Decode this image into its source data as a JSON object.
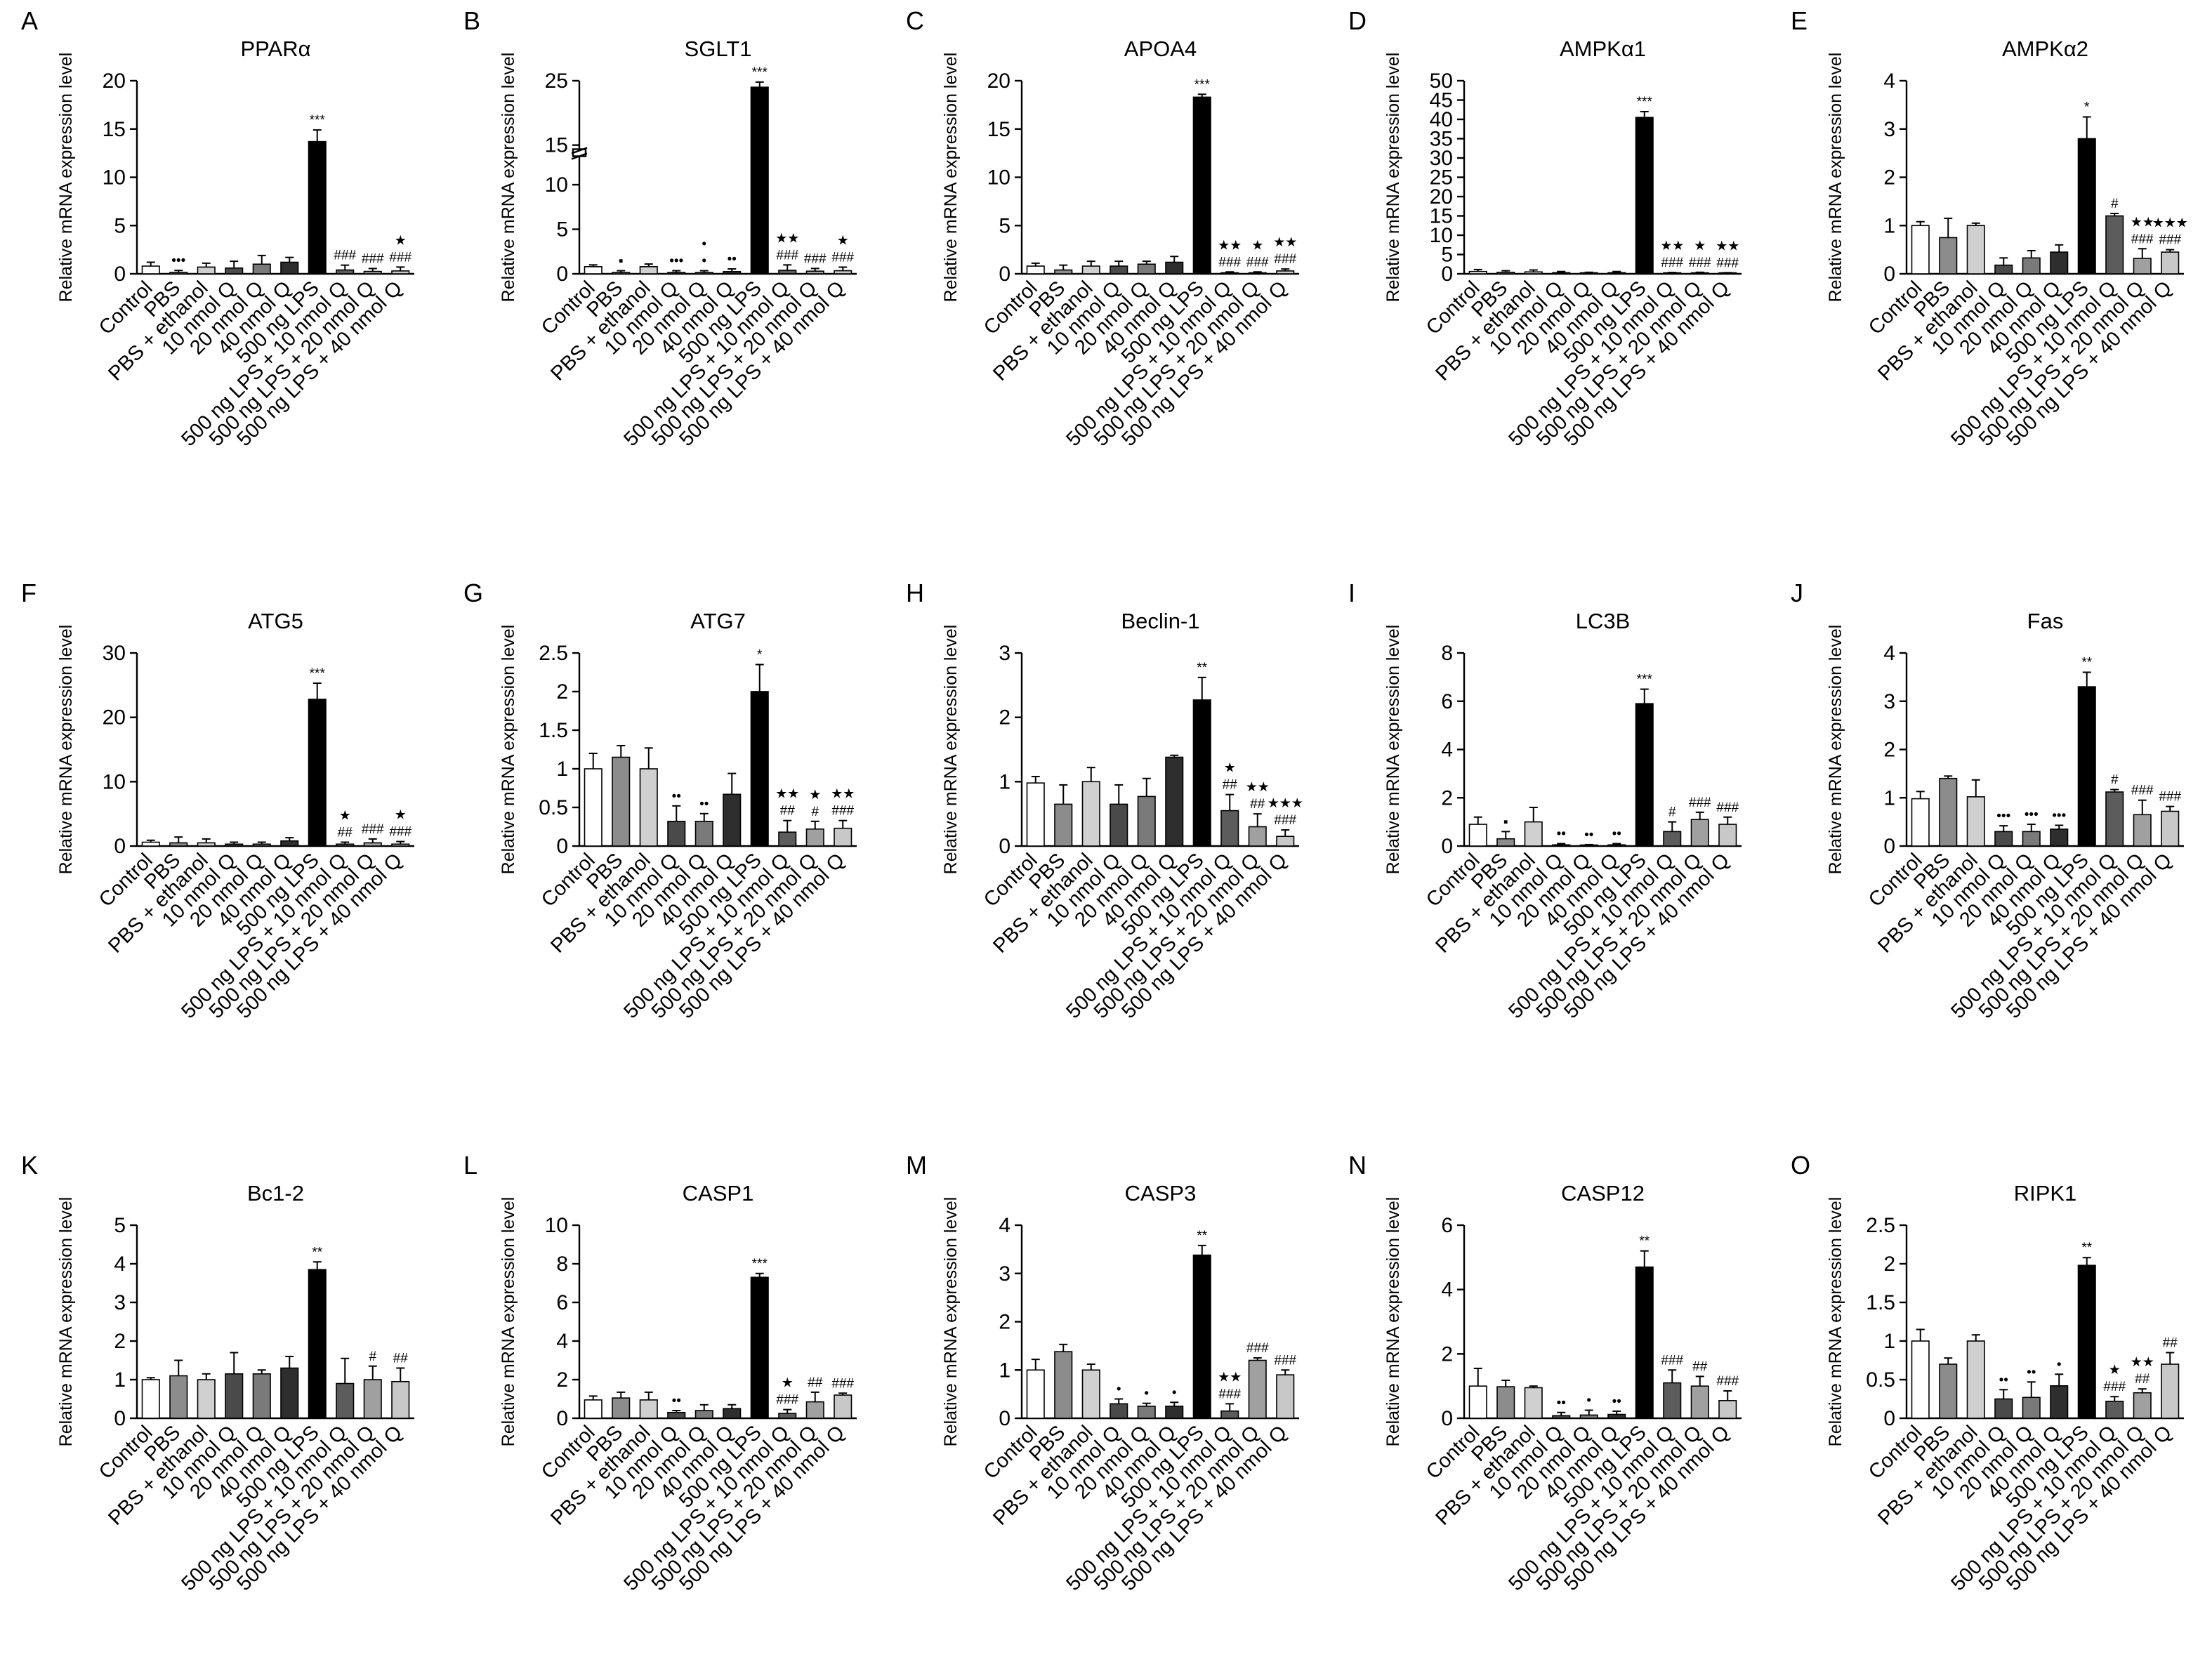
{
  "figure": {
    "ylabel": "Relative mRNA expression level",
    "categories": [
      "Control",
      "PBS",
      "PBS + ethanol",
      "10 nmol Q",
      "20 nmol Q",
      "40 nmol Q",
      "500 ng LPS",
      "500 ng LPS + 10 nmol Q",
      "500 ng LPS + 20 nmol Q",
      "500 ng LPS + 40 nmol Q"
    ],
    "bar_colors": [
      "#ffffff",
      "#8c8c8c",
      "#d0d0d0",
      "#4a4a4a",
      "#7a7a7a",
      "#2e2e2e",
      "#000000",
      "#5c5c5c",
      "#a0a0a0",
      "#c8c8c8"
    ]
  },
  "chart_data": [
    {
      "type": "bar",
      "letter": "A",
      "title": "PPARα",
      "ylabel": "Relative mRNA expression level",
      "ylim": [
        0,
        20
      ],
      "yticks": [
        0,
        5,
        10,
        15,
        20
      ],
      "values": [
        0.8,
        0.15,
        0.7,
        0.6,
        1.0,
        1.2,
        13.7,
        0.4,
        0.25,
        0.3
      ],
      "errors": [
        0.4,
        0.2,
        0.4,
        0.7,
        0.9,
        0.5,
        1.2,
        0.5,
        0.3,
        0.4
      ],
      "annotations": [
        "",
        "•••",
        "",
        "",
        "",
        "",
        "***",
        "###",
        "###",
        "★\n###"
      ]
    },
    {
      "type": "bar",
      "letter": "B",
      "title": "SGLT1",
      "ylabel": "Relative mRNA expression level",
      "ylim": [
        0,
        25
      ],
      "yticks": [
        0,
        5,
        10,
        15,
        25
      ],
      "broken_axis": true,
      "values": [
        0.8,
        0.15,
        0.8,
        0.15,
        0.15,
        0.25,
        24.0,
        0.4,
        0.3,
        0.35
      ],
      "errors": [
        0.2,
        0.2,
        0.3,
        0.2,
        0.2,
        0.3,
        0.8,
        0.6,
        0.3,
        0.4
      ],
      "annotations": [
        "",
        "▪",
        "",
        "•••",
        "•\n•",
        "••",
        "***",
        "★★\n###",
        "###",
        "★\n###"
      ]
    },
    {
      "type": "bar",
      "letter": "C",
      "title": "APOA4",
      "ylabel": "Relative mRNA expression level",
      "ylim": [
        0,
        20
      ],
      "yticks": [
        0,
        5,
        10,
        15,
        20
      ],
      "values": [
        0.8,
        0.4,
        0.8,
        0.8,
        1.0,
        1.2,
        18.3,
        0.1,
        0.1,
        0.3
      ],
      "errors": [
        0.3,
        0.5,
        0.5,
        0.5,
        0.3,
        0.6,
        0.3,
        0.1,
        0.1,
        0.2
      ],
      "annotations": [
        "",
        "",
        "",
        "",
        "",
        "",
        "***",
        "★★\n###",
        "★\n###",
        "★★\n###"
      ]
    },
    {
      "type": "bar",
      "letter": "D",
      "title": "AMPKα1",
      "ylabel": "Relative mRNA expression level",
      "ylim": [
        0,
        50
      ],
      "yticks": [
        0,
        5,
        10,
        15,
        20,
        25,
        30,
        35,
        40,
        45,
        50
      ],
      "values": [
        0.6,
        0.4,
        0.5,
        0.3,
        0.2,
        0.3,
        40.5,
        0.15,
        0.2,
        0.1
      ],
      "errors": [
        0.5,
        0.4,
        0.5,
        0.3,
        0.2,
        0.3,
        1.5,
        0.2,
        0.2,
        0.2
      ],
      "annotations": [
        "",
        "",
        "",
        "",
        "",
        "",
        "***",
        "★★\n###",
        "★\n###",
        "★★\n###"
      ]
    },
    {
      "type": "bar",
      "letter": "E",
      "title": "AMPKα2",
      "ylabel": "Relative mRNA expression level",
      "ylim": [
        0,
        4
      ],
      "yticks": [
        0,
        1,
        2,
        3,
        4
      ],
      "values": [
        1.0,
        0.75,
        1.0,
        0.18,
        0.33,
        0.45,
        2.8,
        1.2,
        0.32,
        0.45
      ],
      "errors": [
        0.08,
        0.4,
        0.05,
        0.15,
        0.15,
        0.15,
        0.45,
        0.05,
        0.2,
        0.05
      ],
      "annotations": [
        "",
        "",
        "",
        "",
        "",
        "",
        "*",
        "#",
        "★★\n###",
        "★★★\n###"
      ]
    },
    {
      "type": "bar",
      "letter": "F",
      "title": "ATG5",
      "ylabel": "Relative mRNA expression level",
      "ylim": [
        0,
        30
      ],
      "yticks": [
        0,
        10,
        20,
        30
      ],
      "values": [
        0.6,
        0.5,
        0.5,
        0.3,
        0.3,
        0.8,
        22.8,
        0.3,
        0.5,
        0.3
      ],
      "errors": [
        0.3,
        0.9,
        0.6,
        0.3,
        0.3,
        0.5,
        2.5,
        0.3,
        0.6,
        0.4
      ],
      "annotations": [
        "",
        "",
        "",
        "",
        "",
        "",
        "***",
        "★\n##",
        "###",
        "★\n###"
      ]
    },
    {
      "type": "bar",
      "letter": "G",
      "title": "ATG7",
      "ylabel": "Relative mRNA expression level",
      "ylim": [
        0,
        2.5
      ],
      "yticks": [
        0,
        0.5,
        1.0,
        1.5,
        2.0,
        2.5
      ],
      "values": [
        1.0,
        1.15,
        1.0,
        0.32,
        0.32,
        0.67,
        2.0,
        0.18,
        0.22,
        0.23
      ],
      "errors": [
        0.2,
        0.15,
        0.27,
        0.2,
        0.1,
        0.27,
        0.35,
        0.15,
        0.1,
        0.1
      ],
      "annotations": [
        "",
        "",
        "",
        "••",
        "••",
        "",
        "*",
        "★★\n##",
        "★\n#",
        "★★\n###"
      ]
    },
    {
      "type": "bar",
      "letter": "H",
      "title": "Beclin-1",
      "ylabel": "Relative mRNA expression level",
      "ylim": [
        0,
        3
      ],
      "yticks": [
        0,
        1,
        2,
        3
      ],
      "values": [
        0.98,
        0.65,
        1.0,
        0.65,
        0.77,
        1.38,
        2.27,
        0.55,
        0.3,
        0.15
      ],
      "errors": [
        0.1,
        0.3,
        0.22,
        0.3,
        0.28,
        0.03,
        0.35,
        0.25,
        0.2,
        0.1
      ],
      "annotations": [
        "",
        "",
        "",
        "",
        "",
        "",
        "**",
        "★\n##",
        "★★\n##",
        "★★★\n###"
      ]
    },
    {
      "type": "bar",
      "letter": "I",
      "title": "LC3B",
      "ylabel": "Relative mRNA expression level",
      "ylim": [
        0,
        8
      ],
      "yticks": [
        0,
        2,
        4,
        6,
        8
      ],
      "values": [
        0.9,
        0.3,
        1.0,
        0.05,
        0.03,
        0.05,
        5.9,
        0.6,
        1.1,
        0.9
      ],
      "errors": [
        0.3,
        0.3,
        0.6,
        0.05,
        0.03,
        0.05,
        0.6,
        0.4,
        0.3,
        0.3
      ],
      "annotations": [
        "",
        "▪",
        "",
        "••",
        "••",
        "••",
        "***",
        "#",
        "###",
        "###"
      ]
    },
    {
      "type": "bar",
      "letter": "J",
      "title": "Fas",
      "ylabel": "Relative mRNA expression level",
      "ylim": [
        0,
        4
      ],
      "yticks": [
        0,
        1,
        2,
        3,
        4
      ],
      "values": [
        0.98,
        1.4,
        1.02,
        0.3,
        0.3,
        0.35,
        3.3,
        1.12,
        0.65,
        0.72
      ],
      "errors": [
        0.15,
        0.05,
        0.35,
        0.12,
        0.15,
        0.08,
        0.3,
        0.05,
        0.3,
        0.1
      ],
      "annotations": [
        "",
        "",
        "",
        "•••",
        "•••",
        "•••",
        "**",
        "#",
        "###",
        "###"
      ]
    },
    {
      "type": "bar",
      "letter": "K",
      "title": "Bc1-2",
      "ylabel": "Relative mRNA expression level",
      "ylim": [
        0,
        5
      ],
      "yticks": [
        0,
        1,
        2,
        3,
        4,
        5
      ],
      "values": [
        1.0,
        1.1,
        1.0,
        1.15,
        1.15,
        1.3,
        3.85,
        0.9,
        1.0,
        0.95
      ],
      "errors": [
        0.05,
        0.4,
        0.15,
        0.55,
        0.1,
        0.3,
        0.2,
        0.65,
        0.35,
        0.35
      ],
      "annotations": [
        "",
        "",
        "",
        "",
        "",
        "",
        "**",
        "",
        "#",
        "##"
      ]
    },
    {
      "type": "bar",
      "letter": "L",
      "title": "CASP1",
      "ylabel": "Relative mRNA expression level",
      "ylim": [
        0,
        10
      ],
      "yticks": [
        0,
        2,
        4,
        6,
        8,
        10
      ],
      "values": [
        0.95,
        1.05,
        0.95,
        0.3,
        0.4,
        0.5,
        7.3,
        0.25,
        0.85,
        1.2
      ],
      "errors": [
        0.2,
        0.3,
        0.4,
        0.1,
        0.3,
        0.2,
        0.2,
        0.2,
        0.5,
        0.1
      ],
      "annotations": [
        "",
        "",
        "",
        "••",
        "",
        "",
        "***",
        "★\n###",
        "##",
        "###"
      ]
    },
    {
      "type": "bar",
      "letter": "M",
      "title": "CASP3",
      "ylabel": "Relative mRNA expression level",
      "ylim": [
        0,
        4
      ],
      "yticks": [
        0,
        1,
        2,
        3,
        4
      ],
      "values": [
        1.0,
        1.38,
        1.0,
        0.3,
        0.25,
        0.25,
        3.38,
        0.15,
        1.2,
        0.9
      ],
      "errors": [
        0.22,
        0.15,
        0.12,
        0.1,
        0.06,
        0.08,
        0.2,
        0.15,
        0.05,
        0.1
      ],
      "annotations": [
        "",
        "",
        "",
        "•",
        "•",
        "•",
        "**",
        "★★\n###",
        "###",
        "###"
      ]
    },
    {
      "type": "bar",
      "letter": "N",
      "title": "CASP12",
      "ylabel": "Relative mRNA expression level",
      "ylim": [
        0,
        6
      ],
      "yticks": [
        0,
        2,
        4,
        6
      ],
      "values": [
        1.0,
        0.98,
        0.95,
        0.08,
        0.1,
        0.12,
        4.7,
        1.1,
        1.0,
        0.55
      ],
      "errors": [
        0.55,
        0.2,
        0.05,
        0.1,
        0.15,
        0.1,
        0.5,
        0.4,
        0.3,
        0.3
      ],
      "annotations": [
        "",
        "",
        "",
        "••",
        "•",
        "••",
        "**",
        "###",
        "##",
        "###"
      ]
    },
    {
      "type": "bar",
      "letter": "O",
      "title": "RIPK1",
      "ylabel": "Relative mRNA expression level",
      "ylim": [
        0,
        2.5
      ],
      "yticks": [
        0,
        0.5,
        1.0,
        1.5,
        2.0,
        2.5
      ],
      "values": [
        1.0,
        0.7,
        1.0,
        0.25,
        0.27,
        0.42,
        1.98,
        0.22,
        0.33,
        0.7
      ],
      "errors": [
        0.15,
        0.08,
        0.08,
        0.12,
        0.2,
        0.15,
        0.1,
        0.06,
        0.05,
        0.15
      ],
      "annotations": [
        "",
        "",
        "",
        "••",
        "••",
        "•",
        "**",
        "★\n###",
        "★★\n##",
        "##"
      ]
    }
  ]
}
